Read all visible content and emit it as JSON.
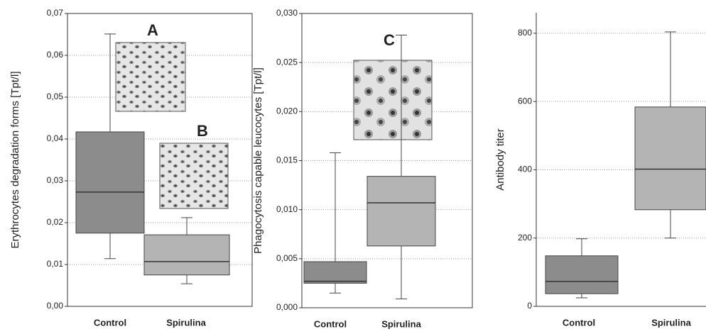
{
  "chart_data": [
    {
      "type": "box",
      "ylabel": "Erythrocytes degradation forms [Tpt/l]",
      "categories": [
        "Control",
        "Spirulina"
      ],
      "colors": [
        "#8c8c8c",
        "#b4b4b4"
      ],
      "boxes": [
        {
          "min": 0.0114,
          "q1": 0.0175,
          "median": 0.0273,
          "q3": 0.0417,
          "max": 0.0651
        },
        {
          "min": 0.0054,
          "q1": 0.0075,
          "median": 0.0107,
          "q3": 0.0171,
          "max": 0.0212
        }
      ],
      "ylim": [
        0,
        0.07
      ],
      "yticks": [
        {
          "value": 0,
          "label": "0,00"
        },
        {
          "value": 0.01,
          "label": "0,01"
        },
        {
          "value": 0.02,
          "label": "0,02"
        },
        {
          "value": 0.03,
          "label": "0,03"
        },
        {
          "value": 0.04,
          "label": "0,04"
        },
        {
          "value": 0.05,
          "label": "0,05"
        },
        {
          "value": 0.06,
          "label": "0,06"
        },
        {
          "value": 0.07,
          "label": "0,07"
        }
      ],
      "grid": true,
      "annotations": [
        "A",
        "B"
      ]
    },
    {
      "type": "box",
      "ylabel": "Phagocytosis capable leucocytes [Tpt/l]",
      "categories": [
        "Control",
        "Spirulina"
      ],
      "colors": [
        "#8c8c8c",
        "#b4b4b4"
      ],
      "boxes": [
        {
          "min": 0.0015,
          "q1": 0.0025,
          "median": 0.0027,
          "q3": 0.0047,
          "max": 0.0158
        },
        {
          "min": 0.0009,
          "q1": 0.0063,
          "median": 0.0107,
          "q3": 0.0134,
          "max": 0.0278
        }
      ],
      "ylim": [
        0,
        0.03
      ],
      "yticks": [
        {
          "value": 0,
          "label": "0,000"
        },
        {
          "value": 0.005,
          "label": "0,005"
        },
        {
          "value": 0.01,
          "label": "0,010"
        },
        {
          "value": 0.015,
          "label": "0,015"
        },
        {
          "value": 0.02,
          "label": "0,020"
        },
        {
          "value": 0.025,
          "label": "0,025"
        },
        {
          "value": 0.03,
          "label": "0,030"
        }
      ],
      "grid": true,
      "annotations": [
        "C"
      ]
    },
    {
      "type": "box",
      "ylabel": "Antibody titer",
      "categories": [
        "Control",
        "Spirulina"
      ],
      "colors": [
        "#8c8c8c",
        "#b4b4b4"
      ],
      "boxes": [
        {
          "min": 25,
          "q1": 37,
          "median": 73,
          "q3": 148,
          "max": 198
        },
        {
          "min": 200,
          "q1": 283,
          "median": 402,
          "q3": 584,
          "max": 804
        }
      ],
      "ylim": [
        0,
        860
      ],
      "yticks": [
        0,
        200,
        400,
        600,
        800
      ],
      "grid": true,
      "annotations": []
    }
  ]
}
